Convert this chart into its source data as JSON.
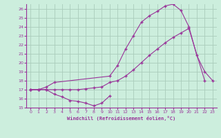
{
  "xlabel": "Windchill (Refroidissement éolien,°C)",
  "bg_color": "#cceedd",
  "grid_color": "#aaccbb",
  "line_color": "#993399",
  "xlim": [
    -0.5,
    23.5
  ],
  "ylim": [
    15,
    26.5
  ],
  "yticks": [
    15,
    16,
    17,
    18,
    19,
    20,
    21,
    22,
    23,
    24,
    25,
    26
  ],
  "xticks": [
    0,
    1,
    2,
    3,
    4,
    5,
    6,
    7,
    8,
    9,
    10,
    11,
    12,
    13,
    14,
    15,
    16,
    17,
    18,
    19,
    20,
    21,
    22,
    23
  ],
  "line1_x": [
    0,
    1,
    2,
    3,
    4,
    5,
    6,
    7,
    8,
    9,
    10
  ],
  "line1_y": [
    17.0,
    17.0,
    17.0,
    16.5,
    16.2,
    15.8,
    15.7,
    15.5,
    15.2,
    15.5,
    16.3
  ],
  "line2_x": [
    0,
    1,
    2,
    3,
    4,
    5,
    6,
    7,
    8,
    9,
    10,
    11,
    12,
    13,
    14,
    15,
    16,
    17,
    18,
    19,
    20,
    22
  ],
  "line2_y": [
    17.0,
    17.0,
    17.0,
    17.0,
    17.0,
    17.0,
    17.0,
    17.1,
    17.2,
    17.3,
    17.8,
    18.0,
    18.5,
    19.2,
    20.0,
    20.8,
    21.5,
    22.2,
    22.8,
    23.3,
    23.8,
    18.0
  ],
  "line3_x": [
    0,
    1,
    2,
    3,
    10,
    11,
    12,
    13,
    14,
    15,
    16,
    17,
    18,
    19,
    20,
    21,
    22,
    23
  ],
  "line3_y": [
    17.0,
    17.0,
    17.3,
    17.8,
    18.5,
    19.7,
    21.5,
    23.0,
    24.5,
    25.2,
    25.7,
    26.3,
    26.5,
    25.8,
    24.0,
    20.8,
    19.0,
    18.0
  ]
}
